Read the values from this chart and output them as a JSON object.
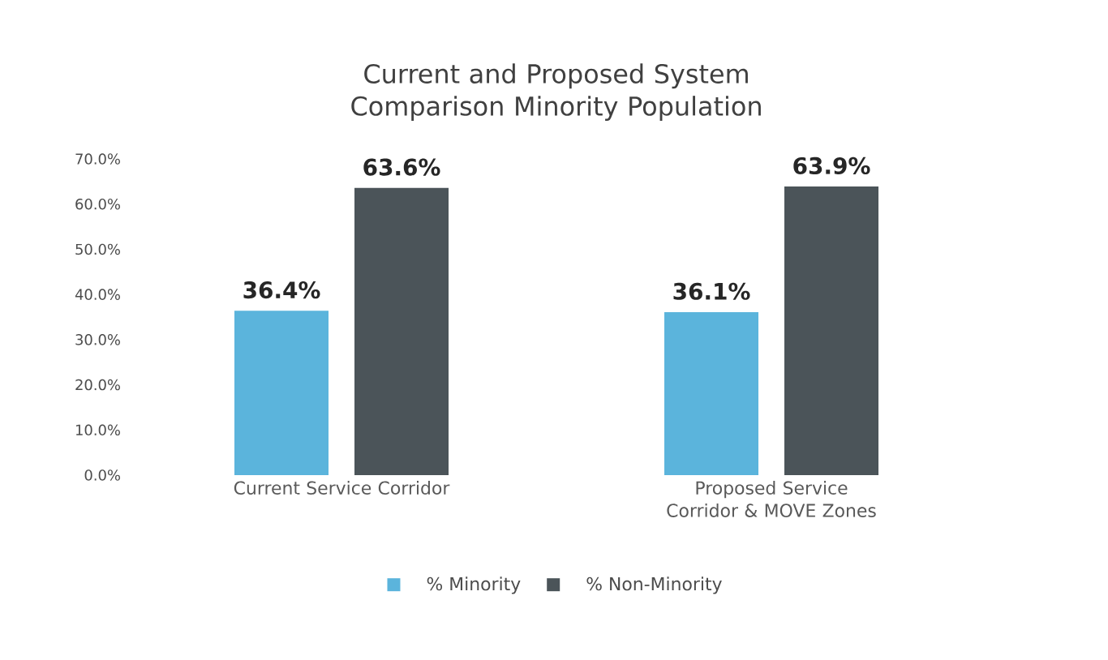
{
  "chart_data": {
    "type": "bar",
    "title": "Current and Proposed System Comparison Minority Population",
    "categories": [
      "Current Service Corridor",
      "Proposed Service Corridor & MOVE Zones"
    ],
    "series": [
      {
        "name": "% Minority",
        "color": "#5bb4dc",
        "values": [
          36.4,
          36.1
        ],
        "value_labels": [
          "36.4%",
          "36.1%"
        ]
      },
      {
        "name": "% Non-Minority",
        "color": "#4b5459",
        "values": [
          63.6,
          63.9
        ],
        "value_labels": [
          "63.6%",
          "63.9%"
        ]
      }
    ],
    "ylim": [
      0,
      70
    ],
    "yticks": [
      {
        "value": 0,
        "label": "0.0%"
      },
      {
        "value": 10,
        "label": "10.0%"
      },
      {
        "value": 20,
        "label": "20.0%"
      },
      {
        "value": 30,
        "label": "30.0%"
      },
      {
        "value": 40,
        "label": "40.0%"
      },
      {
        "value": 50,
        "label": "50.0%"
      },
      {
        "value": 60,
        "label": "60.0%"
      },
      {
        "value": 70,
        "label": "70.0%"
      }
    ],
    "grid": false,
    "legend": "bottom"
  }
}
